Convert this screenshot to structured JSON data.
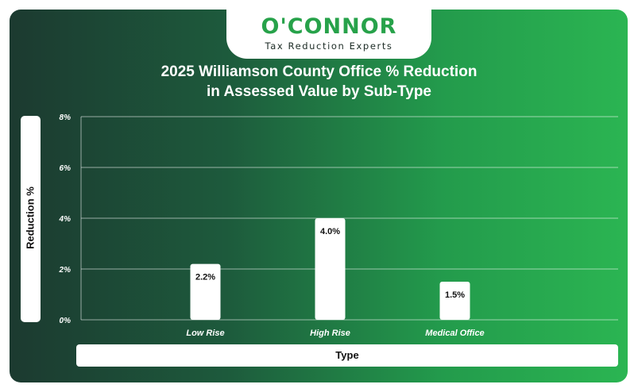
{
  "brand": {
    "name": "O'CONNOR",
    "tagline": "Tax Reduction Experts"
  },
  "colors": {
    "brand_green": "#27a24a",
    "background_dark": "#1c3a30",
    "background_light": "#2bb552",
    "bar": "#ffffff"
  },
  "chart_data": {
    "type": "bar",
    "title_line1": "2025 Williamson County Office % Reduction",
    "title_line2": "in Assessed Value by Sub-Type",
    "xlabel": "Type",
    "ylabel": "Reduction %",
    "categories": [
      "Low Rise",
      "High Rise",
      "Medical Office"
    ],
    "values": [
      2.2,
      4.0,
      1.5
    ],
    "value_labels": [
      "2.2%",
      "4.0%",
      "1.5%"
    ],
    "ylim": [
      0,
      8
    ],
    "yticks": [
      0,
      2,
      4,
      6,
      8
    ],
    "ytick_labels": [
      "0%",
      "2%",
      "4%",
      "6%",
      "8%"
    ],
    "grid": true,
    "legend": "none"
  }
}
